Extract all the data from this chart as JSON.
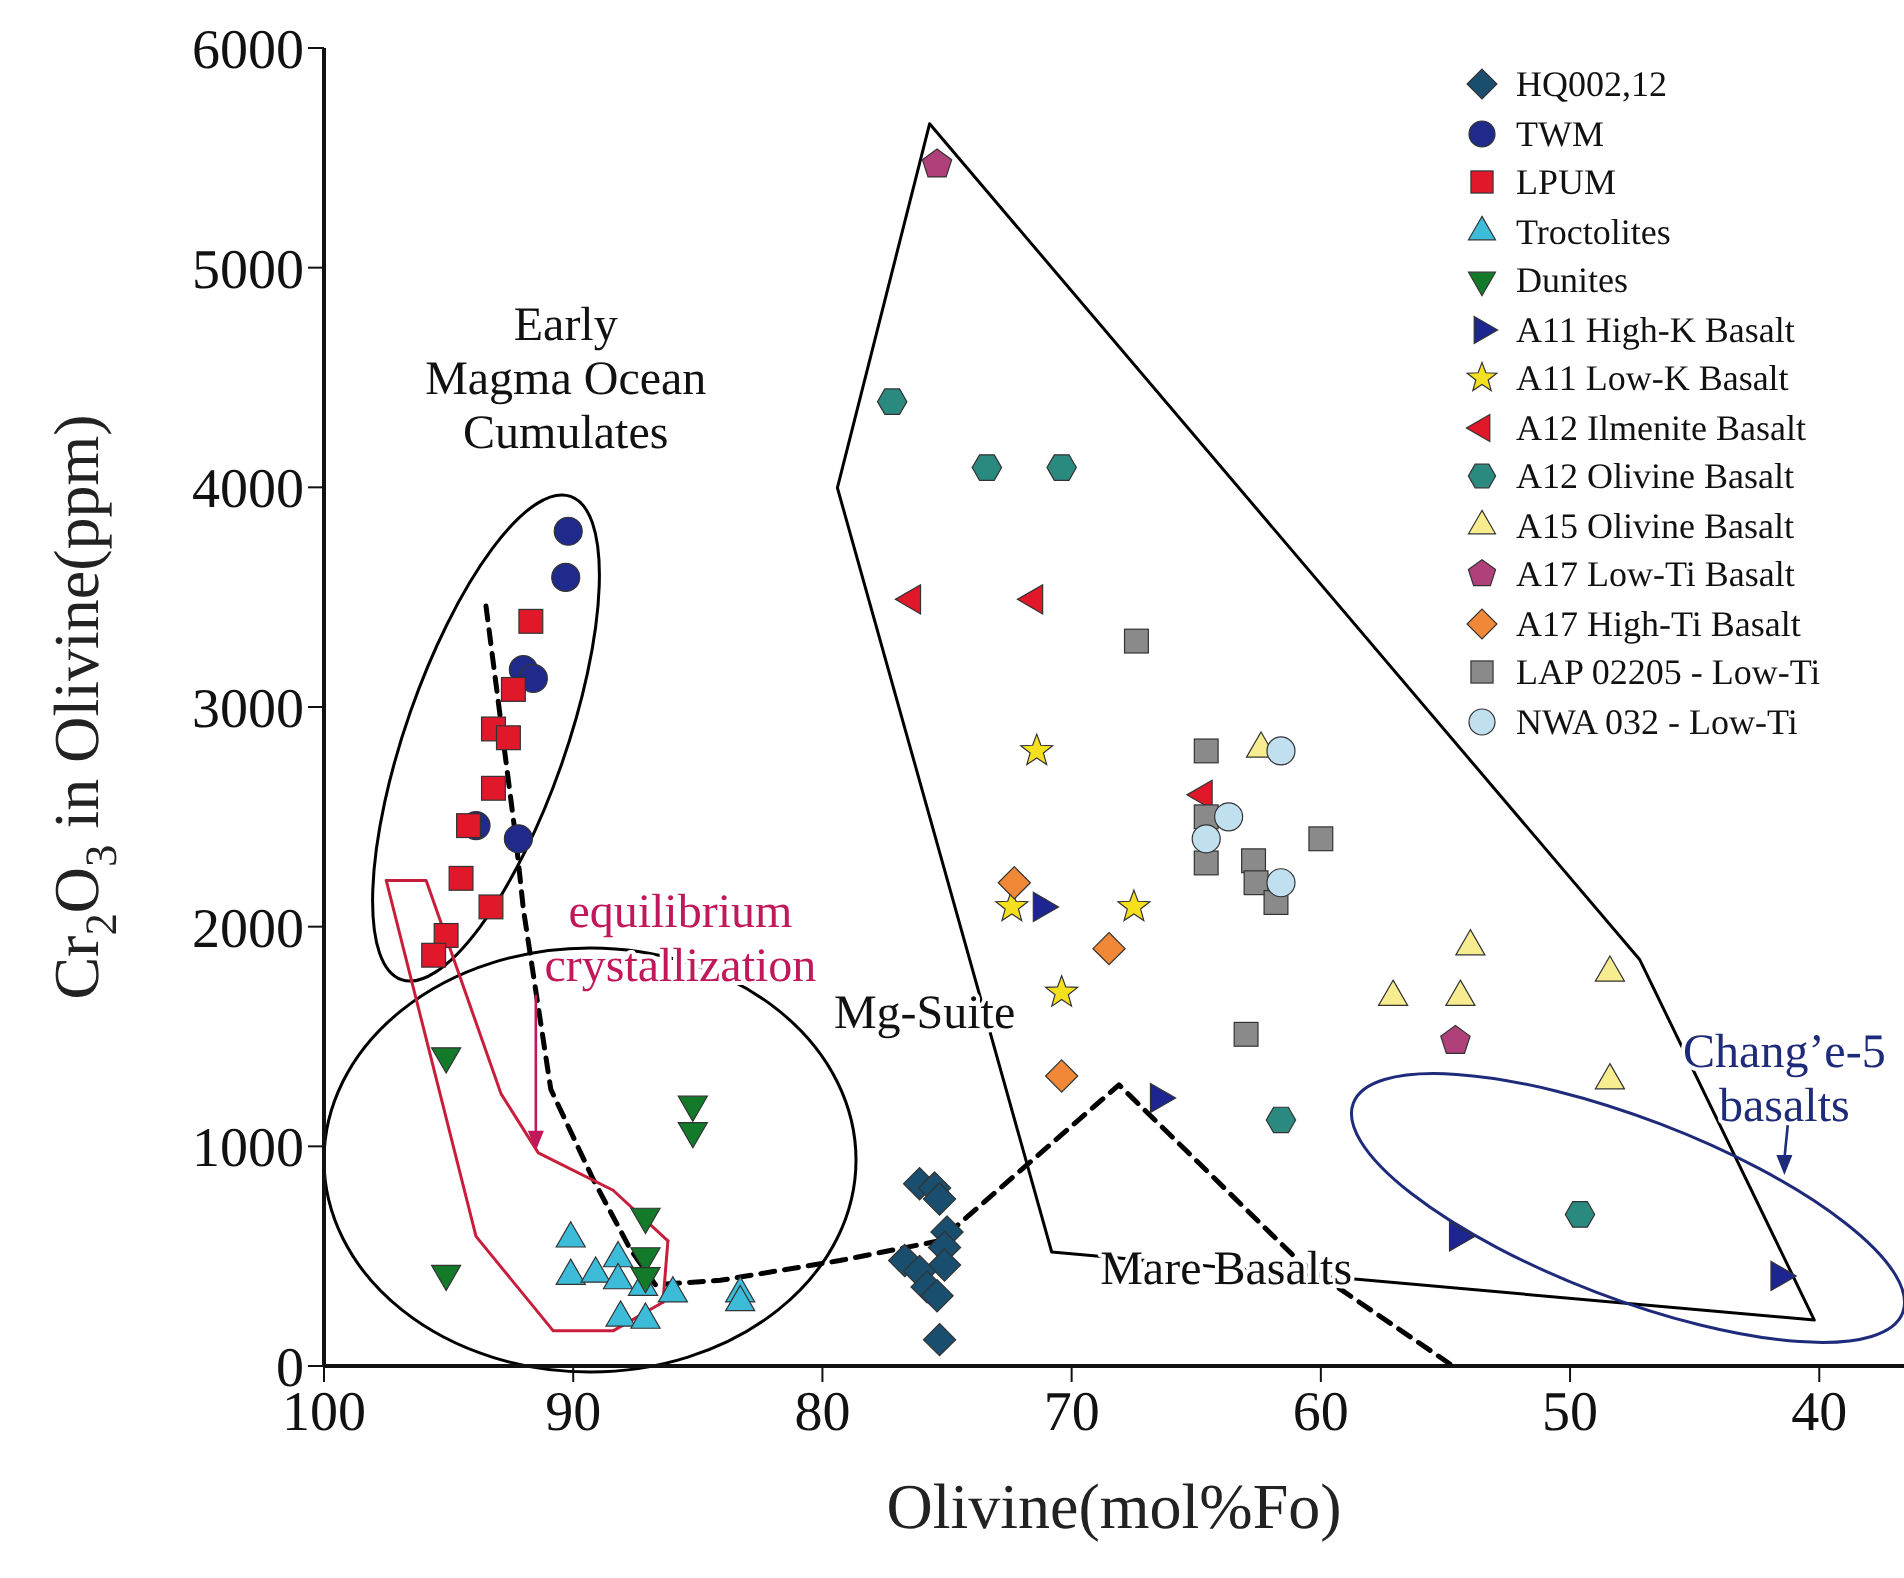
{
  "chart_data": {
    "type": "scatter",
    "xlabel": "Olivine(mol%Fo)",
    "ylabel": "Cr$_{2}$O$_{3}$ in Olivine(ppm)",
    "xlim": [
      100,
      36.6
    ],
    "xticks": [
      100,
      90,
      80,
      70,
      60,
      50,
      40
    ],
    "ylim": [
      0,
      6000
    ],
    "yticks": [
      0,
      1000,
      2000,
      3000,
      4000,
      5000,
      6000
    ],
    "legend": "top right",
    "annotations": [
      "Early\nMagma Ocean\nCumulates",
      {
        "text": "equilibrium\ncrystallization",
        "x": 91.5,
        "y": 980
      },
      "Mg-Suite",
      "Mare Basalts",
      "Chang’e-5\nbasalts"
    ],
    "series": [
      {
        "name": "HQ002,12",
        "color": "#1a4e6e",
        "marker": "diamond",
        "x": [
          76.1,
          75.5,
          75.3,
          75.0,
          76.7,
          75.1,
          75.1,
          76.1,
          75.8,
          75.4,
          75.3
        ],
        "values": [
          830,
          810,
          760,
          610,
          480,
          540,
          460,
          430,
          360,
          320,
          120
        ]
      },
      {
        "name": "TWM",
        "color": "#1f2a8a",
        "marker": "circle",
        "x": [
          90.2,
          90.3,
          92.0,
          91.6,
          93.9,
          92.2
        ],
        "values": [
          3800,
          3590,
          3170,
          3130,
          2460,
          2400
        ]
      },
      {
        "name": "LPUM",
        "color": "#e0182a",
        "marker": "square",
        "x": [
          91.7,
          92.4,
          93.2,
          92.6,
          93.2,
          94.2,
          94.5,
          93.3,
          95.1,
          95.6
        ],
        "values": [
          3390,
          3080,
          2900,
          2860,
          2630,
          2460,
          2220,
          2090,
          1960,
          1870
        ]
      },
      {
        "name": "Troctolites",
        "color": "#3cbcd8",
        "marker": "triangle",
        "x": [
          90.1,
          90.1,
          89.1,
          88.2,
          88.2,
          87.2,
          86.0,
          83.3,
          83.3,
          88.1,
          87.1
        ],
        "values": [
          580,
          410,
          420,
          490,
          390,
          360,
          330,
          330,
          290,
          220,
          210
        ]
      },
      {
        "name": "Dunites",
        "color": "#137a2a",
        "marker": "triangle-down",
        "x": [
          95.1,
          85.2,
          85.2,
          87.1,
          87.1,
          95.1,
          87.1
        ],
        "values": [
          1410,
          1190,
          1070,
          680,
          500,
          420,
          410
        ]
      },
      {
        "name": "A11 High-K Basalt",
        "color": "#1c2590",
        "marker": "triangle-right",
        "x": [
          71.2,
          66.5,
          54.5,
          41.6
        ],
        "values": [
          2090,
          1220,
          590,
          410
        ]
      },
      {
        "name": "A11 Low-K Basalt",
        "color": "#f5e020",
        "marker": "star",
        "x": [
          71.4,
          72.4,
          67.5,
          70.4
        ],
        "values": [
          2800,
          2090,
          2090,
          1700
        ]
      },
      {
        "name": "A12 Ilmenite Basalt",
        "color": "#e0182a",
        "marker": "triangle-left",
        "x": [
          76.4,
          71.5,
          64.7
        ],
        "values": [
          3490,
          3490,
          2600
        ]
      },
      {
        "name": "A12 Olivine Basalt",
        "color": "#2a8a80",
        "x": [
          77.2,
          73.4,
          70.4,
          61.6,
          49.6
        ],
        "values": [
          4390,
          4090,
          4090,
          1120,
          690
        ]
      },
      {
        "name": "A15 Olivine Basalt",
        "color": "#f8ec90",
        "marker": "triangle",
        "x": [
          62.4,
          54.0,
          57.1,
          54.4,
          48.4,
          48.4
        ],
        "values": [
          2810,
          1910,
          1680,
          1680,
          1790,
          1300
        ]
      },
      {
        "name": "A17 Low-Ti Basalt",
        "color": "#b0407a",
        "x": [
          75.4,
          54.6
        ],
        "values": [
          5470,
          1480
        ]
      },
      {
        "name": "A17 High-Ti Basalt",
        "color": "#f08838",
        "marker": "diamond",
        "x": [
          72.3,
          68.5,
          70.4
        ],
        "values": [
          2200,
          1900,
          1320
        ]
      },
      {
        "name": "LAP 02205 - Low-Ti",
        "color": "#8a8a8a",
        "marker": "square",
        "x": [
          67.4,
          64.6,
          64.6,
          64.6,
          62.7,
          62.6,
          61.8,
          60.0,
          63.0
        ],
        "values": [
          3300,
          2800,
          2500,
          2290,
          2300,
          2200,
          2110,
          2400,
          1510
        ]
      },
      {
        "name": "NWA 032 - Low-Ti",
        "color": "#c0e0f0",
        "marker": "circle",
        "x": [
          61.6,
          63.7,
          64.6,
          61.6
        ],
        "values": [
          2800,
          2500,
          2400,
          2200
        ]
      },
      {
        "type": "line",
        "color": "#000000",
        "line_style": "dashed",
        "x": [
          93.5,
          92.3,
          92.0,
          90.9,
          89.2,
          87.7,
          86.7,
          84.1,
          79.3,
          75.3,
          68.1,
          60.9,
          54.7
        ],
        "values": [
          3460,
          2400,
          2080,
          1260,
          850,
          530,
          370,
          390,
          480,
          570,
          1280,
          480,
          0
        ]
      },
      {
        "type": "line",
        "color": "#c81e3c",
        "line_style": "solid",
        "x": [
          97.5,
          95.9,
          92.9,
          91.4,
          88.4,
          86.2
        ],
        "values": [
          2210,
          2210,
          1240,
          970,
          800,
          570
        ]
      },
      {
        "type": "line",
        "color": "#c81e3c",
        "line_style": "solid",
        "x": [
          97.5,
          93.9,
          90.8,
          88.4,
          86.4
        ],
        "values": [
          2210,
          590,
          160,
          160,
          290
        ]
      },
      {
        "type": "line",
        "color": "#c81e3c",
        "line_style": "solid",
        "x": [
          86.4,
          86.2
        ],
        "values": [
          290,
          570
        ]
      }
    ]
  }
}
